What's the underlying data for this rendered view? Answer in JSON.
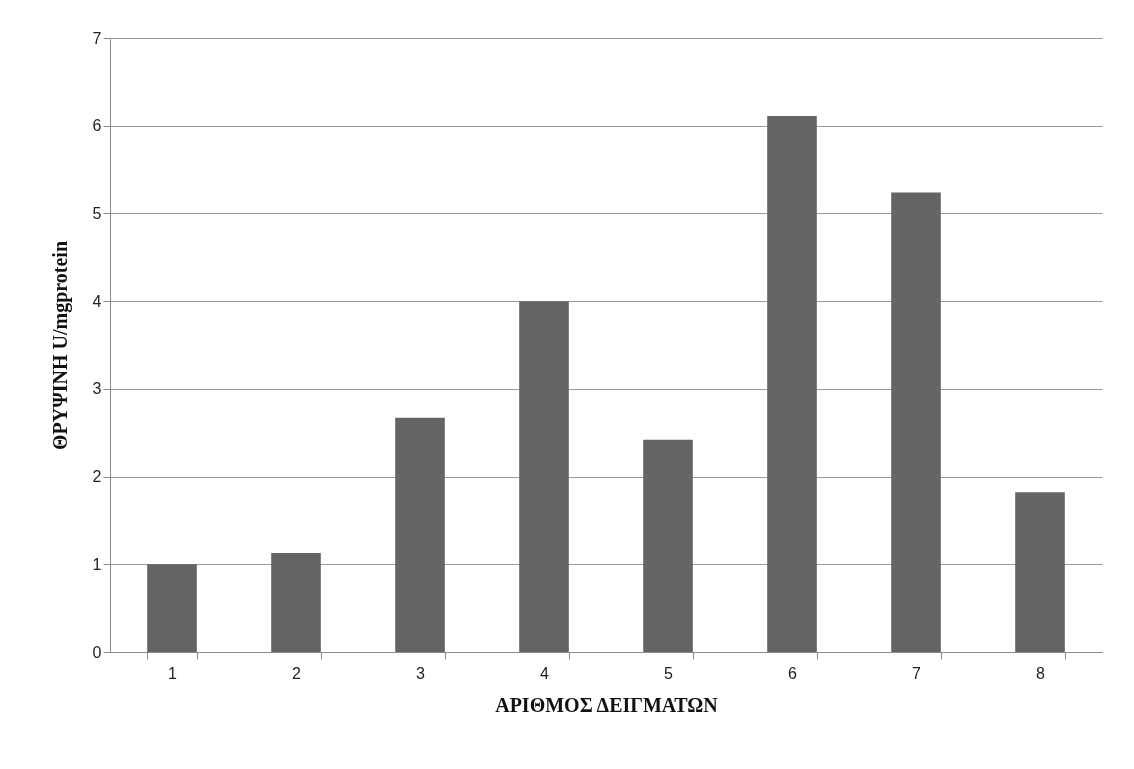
{
  "chart_data": {
    "type": "bar",
    "xlabel": "ΑΡΙΘΜΟΣ ΔΕΙΓΜΑΤΩΝ",
    "ylabel": "ΘΡΥΨΙΝΗ U/mgprotein",
    "categories": [
      "1",
      "2",
      "3",
      "4",
      "5",
      "6",
      "7",
      "8"
    ],
    "values": [
      1.0,
      1.13,
      2.67,
      4.0,
      2.42,
      6.11,
      5.24,
      1.82
    ],
    "color": "#646464",
    "ylim": [
      0,
      7
    ],
    "yticks": [
      0,
      1,
      2,
      3,
      4,
      5,
      6,
      7
    ],
    "grid": "y"
  }
}
